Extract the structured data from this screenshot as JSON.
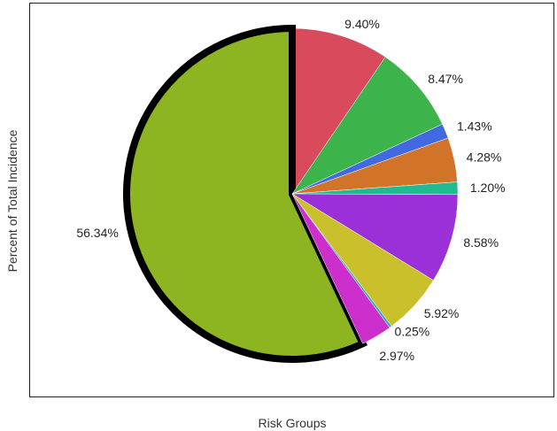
{
  "chart_data": {
    "type": "pie",
    "xlabel": "Risk Groups",
    "ylabel": "Percent of Total Incidence",
    "slices": [
      {
        "label": "9.40%",
        "value": 9.4,
        "color": "#d94b5c"
      },
      {
        "label": "8.47%",
        "value": 8.47,
        "color": "#3cb44b"
      },
      {
        "label": "1.43%",
        "value": 1.43,
        "color": "#4169e1"
      },
      {
        "label": "4.28%",
        "value": 4.28,
        "color": "#d2732a"
      },
      {
        "label": "1.20%",
        "value": 1.2,
        "color": "#1fba8f"
      },
      {
        "label": "8.58%",
        "value": 8.58,
        "color": "#9b30d9"
      },
      {
        "label": "5.92%",
        "value": 5.92,
        "color": "#c9c02b"
      },
      {
        "label": "0.25%",
        "value": 0.25,
        "color": "#3fa9c9"
      },
      {
        "label": "2.97%",
        "value": 2.97,
        "color": "#cc2fcc"
      },
      {
        "label": "56.34%",
        "value": 56.34,
        "color": "#8db521",
        "highlighted": true
      }
    ]
  }
}
